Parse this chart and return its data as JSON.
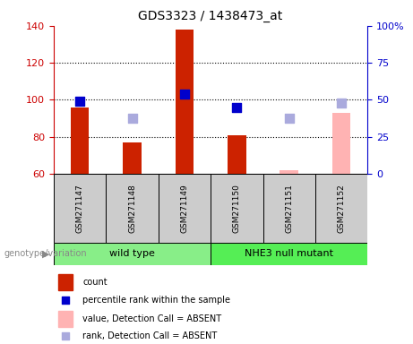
{
  "title": "GDS3323 / 1438473_at",
  "samples": [
    "GSM271147",
    "GSM271148",
    "GSM271149",
    "GSM271150",
    "GSM271151",
    "GSM271152"
  ],
  "bar_values": [
    96,
    77,
    138,
    81,
    null,
    null
  ],
  "bar_absent_values": [
    null,
    null,
    null,
    null,
    62,
    93
  ],
  "dot_present": [
    99,
    null,
    103,
    96,
    null,
    null
  ],
  "dot_absent": [
    null,
    90,
    null,
    null,
    90,
    98
  ],
  "ylim_left": [
    60,
    140
  ],
  "ylim_right": [
    0,
    100
  ],
  "yticks_left": [
    60,
    80,
    100,
    120,
    140
  ],
  "yticks_right": [
    0,
    25,
    50,
    75,
    100
  ],
  "ytick_labels_right": [
    "0",
    "25",
    "50",
    "75",
    "100%"
  ],
  "left_axis_color": "#cc0000",
  "right_axis_color": "#0000cc",
  "bar_color": "#cc2200",
  "bar_absent_color": "#ffb3b3",
  "dot_color": "#0000cc",
  "dot_absent_color": "#aaaadd",
  "bar_width": 0.35,
  "group1_label": "wild type",
  "group2_label": "NHE3 null mutant",
  "group1_color": "#88ee88",
  "group2_color": "#55ee55",
  "genotype_label": "genotype/variation",
  "legend_items": [
    {
      "label": "count",
      "color": "#cc2200",
      "type": "rect"
    },
    {
      "label": "percentile rank within the sample",
      "color": "#0000cc",
      "type": "square"
    },
    {
      "label": "value, Detection Call = ABSENT",
      "color": "#ffb3b3",
      "type": "rect"
    },
    {
      "label": "rank, Detection Call = ABSENT",
      "color": "#aaaadd",
      "type": "square"
    }
  ]
}
